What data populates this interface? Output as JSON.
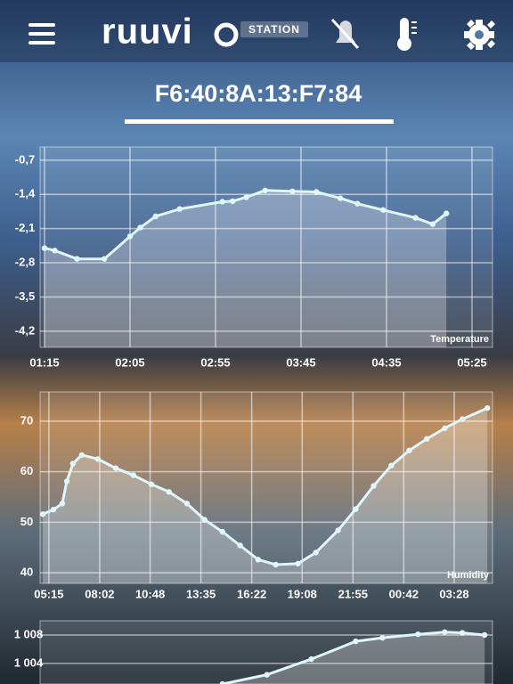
{
  "header": {
    "logo": "ruuvi",
    "badge": "STATION",
    "device": "F6:40:8A:13:F7:84"
  },
  "chart_data": [
    {
      "type": "line",
      "label": "Temperature",
      "x": [
        75,
        81,
        94,
        110,
        125,
        131,
        140,
        154,
        179,
        185,
        193,
        204,
        220,
        234,
        248,
        258,
        273,
        292,
        302,
        310
      ],
      "series": [
        {
          "color": "#dff6fa",
          "values": [
            -2.5,
            -2.55,
            -2.72,
            -2.72,
            -2.26,
            -2.08,
            -1.85,
            -1.7,
            -1.55,
            -1.54,
            -1.46,
            -1.32,
            -1.34,
            -1.35,
            -1.48,
            -1.59,
            -1.72,
            -1.88,
            -2.01,
            -1.79
          ]
        }
      ],
      "xlim": [
        72.4,
        337
      ],
      "ylim": [
        -4.53,
        -0.43
      ],
      "xticks": [
        {
          "value": 75,
          "label": "01:15"
        },
        {
          "value": 125,
          "label": "02:05"
        },
        {
          "value": 175,
          "label": "02:55"
        },
        {
          "value": 225,
          "label": "03:45"
        },
        {
          "value": 275,
          "label": "04:35"
        },
        {
          "value": 325,
          "label": "05:25"
        }
      ],
      "yticks": [
        {
          "value": -0.7,
          "label": "-0,7"
        },
        {
          "value": -1.4,
          "label": "-1,4"
        },
        {
          "value": -2.1,
          "label": "-2,1"
        },
        {
          "value": -2.8,
          "label": "-2,8"
        },
        {
          "value": -3.5,
          "label": "-3,5"
        },
        {
          "value": -4.2,
          "label": "-4,2"
        }
      ],
      "grid": true
    },
    {
      "type": "line",
      "label": "Humidity",
      "x": [
        295,
        330,
        359,
        374,
        394,
        423,
        476,
        535,
        593,
        652,
        710,
        769,
        827,
        886,
        944,
        1003,
        1061,
        1134,
        1193,
        1266,
        1324,
        1383,
        1441,
        1500,
        1558,
        1617,
        1675,
        1757
      ],
      "series": [
        {
          "color": "#dff6fa",
          "values": [
            51.6,
            52.5,
            53.7,
            58.1,
            61.6,
            63.3,
            62.5,
            60.7,
            59.3,
            57.5,
            56.0,
            53.7,
            50.5,
            48.1,
            45.4,
            42.6,
            41.6,
            41.8,
            44.0,
            48.4,
            52.6,
            57.2,
            61.2,
            64.2,
            66.5,
            68.6,
            70.4,
            72.6
          ]
        }
      ],
      "xlim": [
        286,
        1774
      ],
      "ylim": [
        37.9,
        75.8
      ],
      "xticks": [
        {
          "value": 315,
          "label": "05:15"
        },
        {
          "value": 482,
          "label": "08:02"
        },
        {
          "value": 648,
          "label": "10:48"
        },
        {
          "value": 815,
          "label": "13:35"
        },
        {
          "value": 982,
          "label": "16:22"
        },
        {
          "value": 1148,
          "label": "19:08"
        },
        {
          "value": 1315,
          "label": "21:55"
        },
        {
          "value": 1482,
          "label": "00:42"
        },
        {
          "value": 1648,
          "label": "03:28"
        }
      ],
      "yticks": [
        70,
        60,
        50,
        40
      ],
      "grid": true
    },
    {
      "type": "line",
      "x": [
        886,
        1032,
        1178,
        1324,
        1412,
        1529,
        1617,
        1675,
        1748
      ],
      "series": [
        {
          "color": "#dff6fa",
          "values": [
            1001.1,
            1002.4,
            1004.6,
            1007.1,
            1007.6,
            1008.1,
            1008.4,
            1008.3,
            1008.0
          ]
        }
      ],
      "xlim": [
        286,
        1774
      ],
      "ylim": [
        1001.1,
        1010
      ],
      "yticks": [
        {
          "value": 1008,
          "label": "1 008"
        },
        {
          "value": 1004,
          "label": "1 004"
        }
      ],
      "grid": true
    }
  ]
}
